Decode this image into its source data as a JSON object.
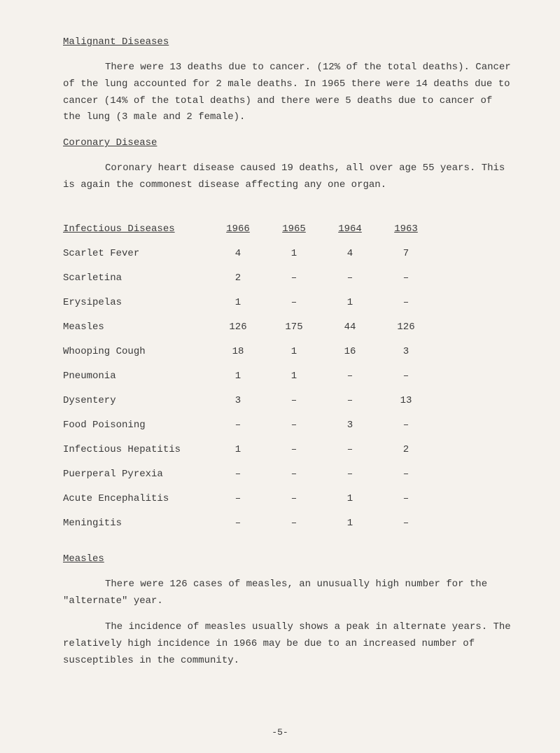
{
  "section1": {
    "heading": "Malignant Diseases",
    "paragraph": "There were 13 deaths due to cancer. (12% of the total deaths). Cancer of the lung accounted for 2 male deaths. In 1965 there were 14 deaths due to cancer (14% of the total deaths) and there were 5 deaths due to cancer of the lung (3 male and 2 female)."
  },
  "section2": {
    "heading": "Coronary Disease",
    "paragraph": "Coronary heart disease caused 19 deaths, all over age 55 years. This is again the commonest disease affecting any one organ."
  },
  "table": {
    "heading": "Infectious Diseases",
    "years": [
      "1966",
      "1965",
      "1964",
      "1963"
    ],
    "rows": [
      {
        "label": "Scarlet Fever",
        "values": [
          "4",
          "1",
          "4",
          "7"
        ]
      },
      {
        "label": "Scarletina",
        "values": [
          "2",
          "–",
          "–",
          "–"
        ]
      },
      {
        "label": "Erysipelas",
        "values": [
          "1",
          "–",
          "1",
          "–"
        ]
      },
      {
        "label": "Measles",
        "values": [
          "126",
          "175",
          "44",
          "126"
        ]
      },
      {
        "label": "Whooping Cough",
        "values": [
          "18",
          "1",
          "16",
          "3"
        ]
      },
      {
        "label": "Pneumonia",
        "values": [
          "1",
          "1",
          "–",
          "–"
        ]
      },
      {
        "label": "Dysentery",
        "values": [
          "3",
          "–",
          "–",
          "13"
        ]
      },
      {
        "label": "Food Poisoning",
        "values": [
          "–",
          "–",
          "3",
          "–"
        ]
      },
      {
        "label": "Infectious Hepatitis",
        "values": [
          "1",
          "–",
          "–",
          "2"
        ]
      },
      {
        "label": "Puerperal Pyrexia",
        "values": [
          "–",
          "–",
          "–",
          "–"
        ]
      },
      {
        "label": "Acute Encephalitis",
        "values": [
          "–",
          "–",
          "1",
          "–"
        ]
      },
      {
        "label": "Meningitis",
        "values": [
          "–",
          "–",
          "1",
          "–"
        ]
      }
    ]
  },
  "section3": {
    "heading": "Measles",
    "paragraph1": "There were 126 cases of measles, an unusually high number for the \"alternate\" year.",
    "paragraph2": "The incidence of measles usually shows a peak in alternate years. The relatively high incidence in 1966 may be due to an increased number of susceptibles in the community."
  },
  "pageNumber": "-5-"
}
